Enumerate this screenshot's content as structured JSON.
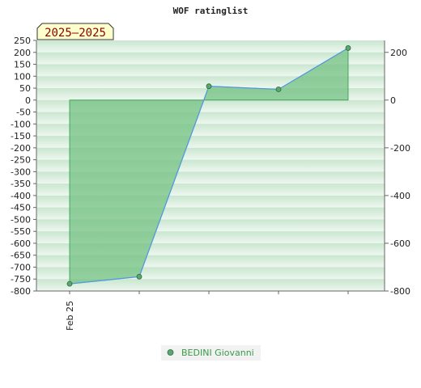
{
  "chart_data": {
    "type": "area",
    "title": "WOF ratinglist",
    "badge": "2025—2025",
    "x": [
      "Feb 25",
      "",
      "",
      "",
      ""
    ],
    "series": [
      {
        "name": "BEDINI Giovanni",
        "values": [
          -770,
          -740,
          58,
          45,
          218
        ]
      }
    ],
    "left_axis": {
      "ylim": [
        -800,
        250
      ],
      "ticks": [
        250,
        200,
        150,
        100,
        50,
        0,
        -50,
        -100,
        -150,
        -200,
        -250,
        -300,
        -350,
        -400,
        -450,
        -500,
        -550,
        -600,
        -650,
        -700,
        -750,
        -800
      ]
    },
    "right_axis": {
      "ylim": [
        -800,
        250
      ],
      "ticks": [
        200,
        0,
        -200,
        -400,
        -600,
        -800
      ]
    },
    "grid": true,
    "legend": "bottom-center",
    "colors": {
      "fill": "#6dbf7e",
      "fill_opacity": 0.7,
      "area_edge": "#2e9a49",
      "line": "#5599dd",
      "marker": "#5aa870",
      "band_dark": "#c9e6cf",
      "band_light": "#eef7f0",
      "badge_bg": "#ffffcc"
    }
  }
}
